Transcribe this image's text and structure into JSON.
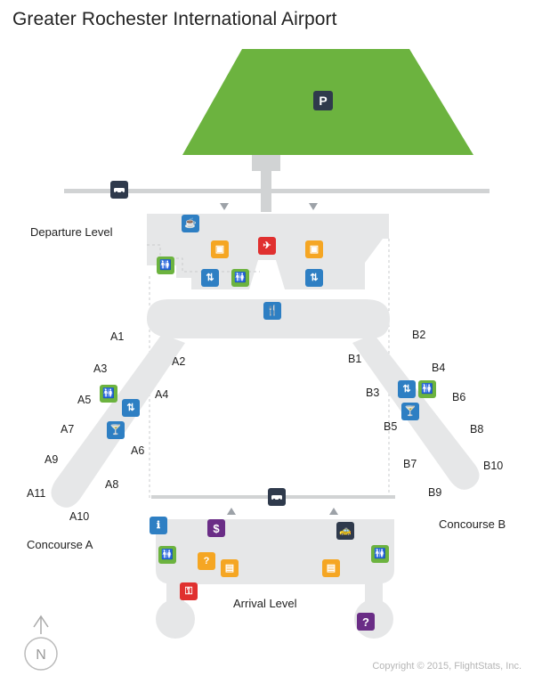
{
  "title": "Greater Rochester International Airport",
  "labels": {
    "departure_level": "Departure Level",
    "arrival_level": "Arrival Level",
    "concourse_a": "Concourse A",
    "concourse_b": "Concourse B"
  },
  "gates_a": [
    "A1",
    "A2",
    "A3",
    "A4",
    "A5",
    "A6",
    "A7",
    "A8",
    "A9",
    "A10",
    "A11"
  ],
  "gates_b": [
    "B1",
    "B2",
    "B3",
    "B4",
    "B5",
    "B6",
    "B7",
    "B8",
    "B9",
    "B10"
  ],
  "icons": {
    "parking": "P",
    "parking_icon_name": "parking-icon",
    "cars": "car-icon",
    "coffee": "coffee-icon",
    "restroom": "restroom-icon",
    "dining": "dining-icon",
    "bar": "cocktail-icon",
    "currency_symbol": "$",
    "help_symbol": "?"
  },
  "compass_letter": "N",
  "copyright": "Copyright © 2015, FlightStats, Inc.",
  "colors": {
    "parking_lot": "#6cb33f",
    "terminal": "#e6e7e8",
    "road": "#d1d3d4",
    "info_blue": "#2e7fc3",
    "restroom_green": "#6cb33f",
    "retail_orange": "#f5a623",
    "ticket_red": "#e0302f",
    "transport_navy": "#2f3a4c",
    "service_purple": "#6a2d86"
  }
}
